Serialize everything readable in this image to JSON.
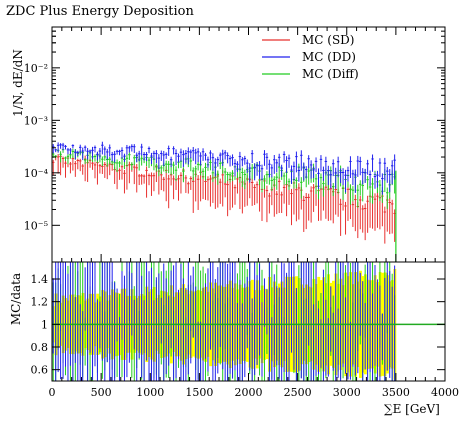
{
  "chart_data": {
    "type": "line",
    "title": "ZDC Plus Energy Deposition",
    "xlabel": "∑E [GeV]",
    "ylabel": "1/N, dE/dN",
    "ratio_ylabel": "MC/data",
    "xlim": [
      0,
      4000
    ],
    "ylim": [
      2e-06,
      0.06
    ],
    "yscale": "log",
    "ratio_ylim": [
      0.5,
      1.55
    ],
    "x_ticks": [
      "0",
      "500",
      "1000",
      "1500",
      "2000",
      "2500",
      "3000",
      "3500",
      "4000"
    ],
    "y_ticks": [
      "10⁻²",
      "10⁻³",
      "10⁻⁴",
      "10⁻⁵"
    ],
    "ratio_ticks": [
      "0.6",
      "0.8",
      "1",
      "1.2",
      "1.4"
    ],
    "legend_position": "top-right",
    "bin_width": 25,
    "x_range": [
      0,
      3500
    ],
    "series": [
      {
        "name": "MC (SD)",
        "color": "#e8302f",
        "start": 0.00018,
        "end": 2.5e-05
      },
      {
        "name": "MC (DD)",
        "color": "#2020ee",
        "start": 0.00032,
        "end": 0.00011
      },
      {
        "name": "MC (Diff)",
        "color": "#22cc22",
        "start": 0.00024,
        "end": 6e-05
      }
    ],
    "ratio_band_color": "#ffff00",
    "ratio_reference": 1
  }
}
